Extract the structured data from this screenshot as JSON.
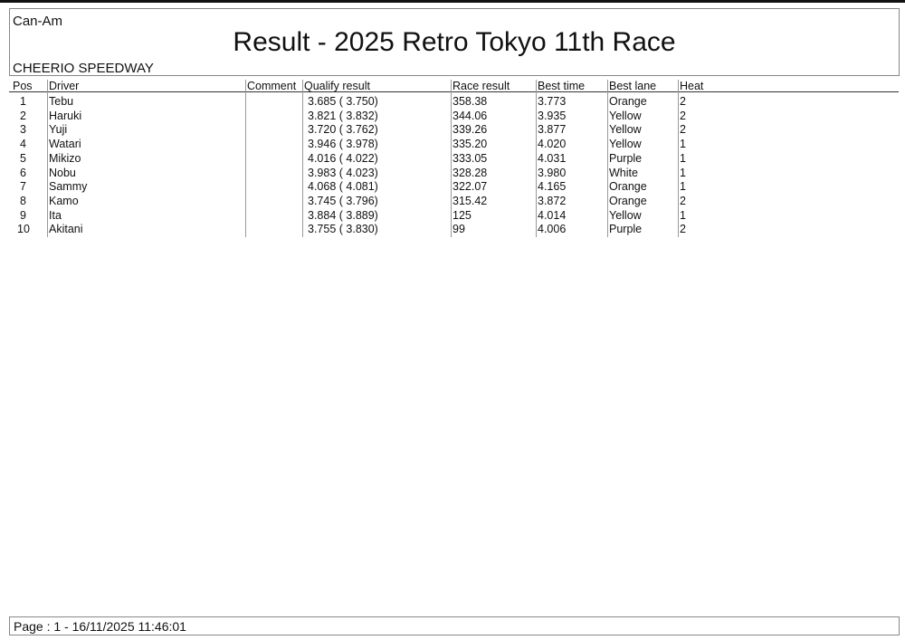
{
  "header": {
    "category": "Can-Am",
    "title": "Result - 2025 Retro Tokyo 11th Race",
    "venue": "CHEERIO SPEEDWAY"
  },
  "table": {
    "columns": [
      "Pos",
      "Driver",
      "Comment",
      "Qualify result",
      "Race result",
      "Best time",
      "Best lane",
      "Heat"
    ],
    "rows": [
      [
        "1",
        "Tebu",
        "",
        "3.685 ( 3.750)",
        "358.38",
        "3.773",
        "Orange",
        "2"
      ],
      [
        "2",
        "Haruki",
        "",
        "3.821 ( 3.832)",
        "344.06",
        "3.935",
        "Yellow",
        "2"
      ],
      [
        "3",
        "Yuji",
        "",
        "3.720 ( 3.762)",
        "339.26",
        "3.877",
        "Yellow",
        "2"
      ],
      [
        "4",
        "Watari",
        "",
        "3.946 ( 3.978)",
        "335.20",
        "4.020",
        "Yellow",
        "1"
      ],
      [
        "5",
        "Mikizo",
        "",
        "4.016 ( 4.022)",
        "333.05",
        "4.031",
        "Purple",
        "1"
      ],
      [
        "6",
        "Nobu",
        "",
        "3.983 ( 4.023)",
        "328.28",
        "3.980",
        "White",
        "1"
      ],
      [
        "7",
        "Sammy",
        "",
        "4.068 ( 4.081)",
        "322.07",
        "4.165",
        "Orange",
        "1"
      ],
      [
        "8",
        "Kamo",
        "",
        "3.745 ( 3.796)",
        "315.42",
        "3.872",
        "Orange",
        "2"
      ],
      [
        "9",
        "Ita",
        "",
        "3.884 ( 3.889)",
        "125",
        "4.014",
        "Yellow",
        "1"
      ],
      [
        "10",
        "Akitani",
        "",
        "3.755 ( 3.830)",
        " 99",
        "4.006",
        "Purple",
        "2"
      ]
    ]
  },
  "footer": {
    "page_info": "Page : 1 - 16/11/2025  11:46:01"
  }
}
